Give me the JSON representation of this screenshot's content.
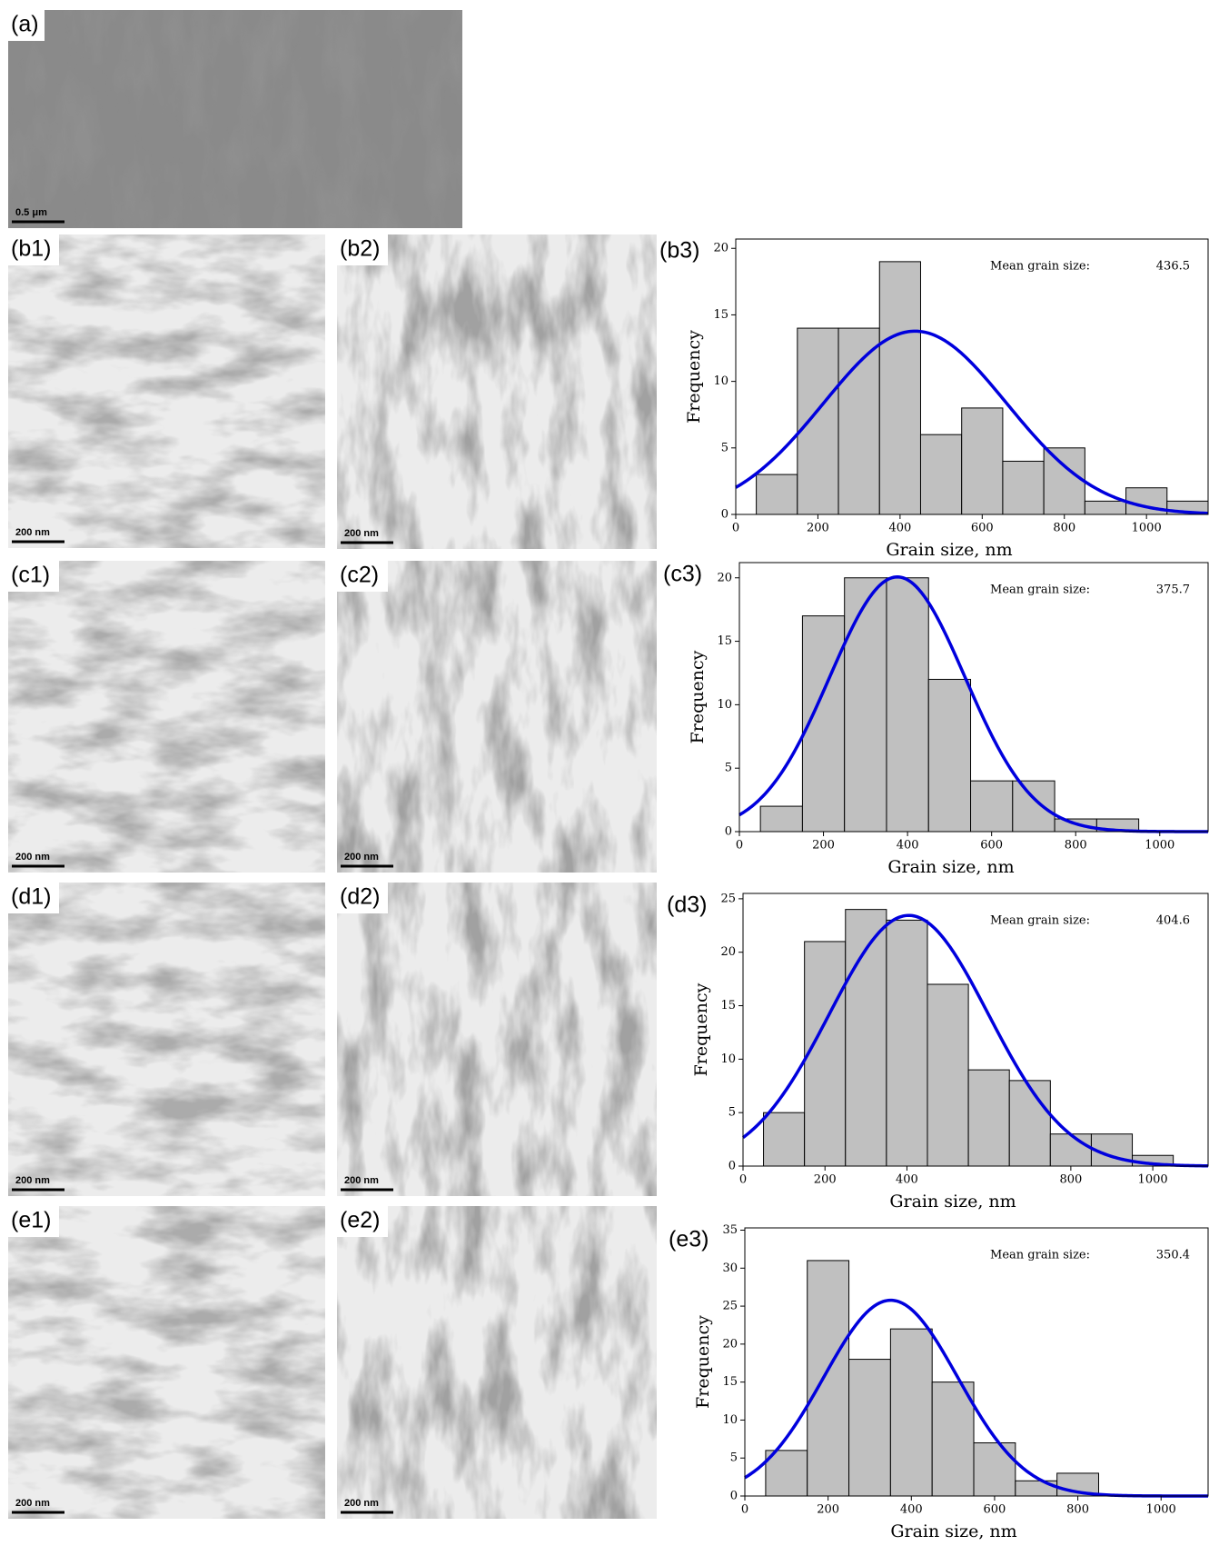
{
  "panels": [
    {
      "label": "(a)",
      "scale_bar": "0.5 μm"
    },
    {
      "label": "(b1)",
      "scale_bar": "200 nm"
    },
    {
      "label": "(b2)",
      "scale_bar": "200 nm"
    },
    {
      "label": "(c1)",
      "scale_bar": "200 nm"
    },
    {
      "label": "(c2)",
      "scale_bar": "200 nm"
    },
    {
      "label": "(d1)",
      "scale_bar": "200 nm"
    },
    {
      "label": "(d2)",
      "scale_bar": "200 nm"
    },
    {
      "label": "(e1)",
      "scale_bar": "200 nm"
    },
    {
      "label": "(e2)",
      "scale_bar": "200 nm"
    }
  ],
  "chart_data": [
    {
      "type": "histogram",
      "label": "(b3)",
      "x_label": "Grain size, nm",
      "y_label": "Frequency",
      "annotation": "Mean grain size:",
      "mean": 436.5,
      "fit_sd": 223,
      "color": "#c0c0c0",
      "fit_color": "#0000dd",
      "bins": [
        50,
        150,
        250,
        350,
        450,
        550,
        650,
        750,
        850,
        950,
        1050,
        1150
      ],
      "values": [
        3,
        14,
        14,
        19,
        6,
        8,
        4,
        5,
        1,
        2,
        1
      ],
      "xlim": [
        0,
        1150
      ],
      "ylim": [
        0,
        20.7
      ],
      "xticks": [
        0,
        200,
        400,
        600,
        800,
        1000
      ],
      "yticks": [
        0,
        5,
        10,
        15,
        20
      ]
    },
    {
      "type": "histogram",
      "label": "(c3)",
      "x_label": "Grain size, nm",
      "y_label": "Frequency",
      "annotation": "Mean grain size:",
      "mean": 375.7,
      "fit_sd": 161,
      "color": "#c0c0c0",
      "fit_color": "#0000dd",
      "bins": [
        50,
        150,
        250,
        350,
        450,
        550,
        650,
        750,
        850,
        950
      ],
      "values": [
        2,
        17,
        20,
        20,
        12,
        4,
        4,
        1,
        1
      ],
      "xlim": [
        0,
        1115
      ],
      "ylim": [
        0,
        21.2
      ],
      "xticks": [
        0,
        200,
        400,
        600,
        800,
        1000
      ],
      "yticks": [
        0,
        5,
        10,
        15,
        20
      ]
    },
    {
      "type": "histogram",
      "label": "(d3)",
      "x_label": "Grain size, nm",
      "y_label": "Frequency",
      "annotation": "Mean grain size:",
      "mean": 404.6,
      "fit_sd": 194,
      "color": "#c0c0c0",
      "fit_color": "#0000dd",
      "bins": [
        50,
        150,
        250,
        350,
        450,
        550,
        650,
        750,
        850,
        950,
        1050
      ],
      "values": [
        5,
        21,
        24,
        23,
        17,
        9,
        8,
        3,
        3,
        1
      ],
      "xlim": [
        0,
        1135
      ],
      "ylim": [
        0,
        25.5
      ],
      "xticks": [
        0,
        200,
        400,
        800,
        1000
      ],
      "yticks": [
        0,
        5,
        10,
        15,
        20,
        25
      ]
    },
    {
      "type": "histogram",
      "label": "(e3)",
      "x_label": "Grain size, nm",
      "y_label": "Frequency",
      "annotation": "Mean grain size:",
      "mean": 350.4,
      "fit_sd": 161,
      "color": "#c0c0c0",
      "fit_color": "#0000dd",
      "bins": [
        50,
        150,
        250,
        350,
        450,
        550,
        650,
        750,
        850
      ],
      "values": [
        6,
        31,
        18,
        22,
        15,
        7,
        2,
        3
      ],
      "xlim": [
        0,
        1113
      ],
      "ylim": [
        0,
        35.3
      ],
      "xticks": [
        0,
        200,
        400,
        600,
        800,
        1000
      ],
      "yticks": [
        0,
        5,
        10,
        15,
        20,
        25,
        30,
        35
      ]
    }
  ]
}
